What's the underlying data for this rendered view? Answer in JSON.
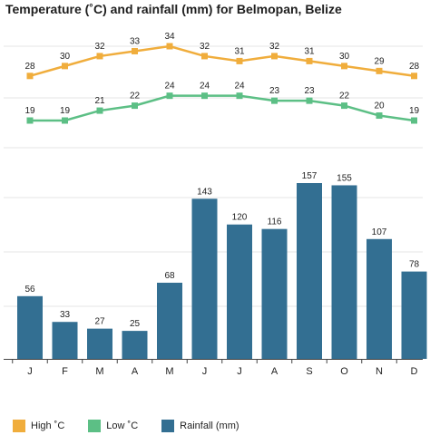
{
  "title": "Temperature (˚C) and rainfall (mm) for Belmopan, Belize",
  "colors": {
    "high": "#f0ad3c",
    "low": "#5cbf85",
    "rainfall": "#336f92",
    "grid": "#e4e4e4"
  },
  "chart_data": {
    "type": "line+bar",
    "title": "Temperature (˚C) and rainfall (mm) for Belmopan, Belize",
    "categories": [
      "J",
      "F",
      "M",
      "A",
      "M",
      "J",
      "J",
      "A",
      "S",
      "O",
      "N",
      "D"
    ],
    "series": [
      {
        "name": "High ˚C",
        "type": "line",
        "color": "#f0ad3c",
        "values": [
          28,
          30,
          32,
          33,
          34,
          32,
          31,
          32,
          31,
          30,
          29,
          28
        ]
      },
      {
        "name": "Low ˚C",
        "type": "line",
        "color": "#5cbf85",
        "values": [
          19,
          19,
          21,
          22,
          24,
          24,
          24,
          23,
          23,
          22,
          20,
          19
        ]
      },
      {
        "name": "Rainfall (mm)",
        "type": "bar",
        "color": "#336f92",
        "values": [
          56,
          33,
          27,
          25,
          68,
          143,
          120,
          116,
          157,
          155,
          107,
          78
        ]
      }
    ],
    "legend_position": "bottom-left",
    "grid": true
  },
  "legend": [
    {
      "label": "High ˚C",
      "color": "#f0ad3c"
    },
    {
      "label": "Low ˚C",
      "color": "#5cbf85"
    },
    {
      "label": "Rainfall (mm)",
      "color": "#336f92"
    }
  ]
}
